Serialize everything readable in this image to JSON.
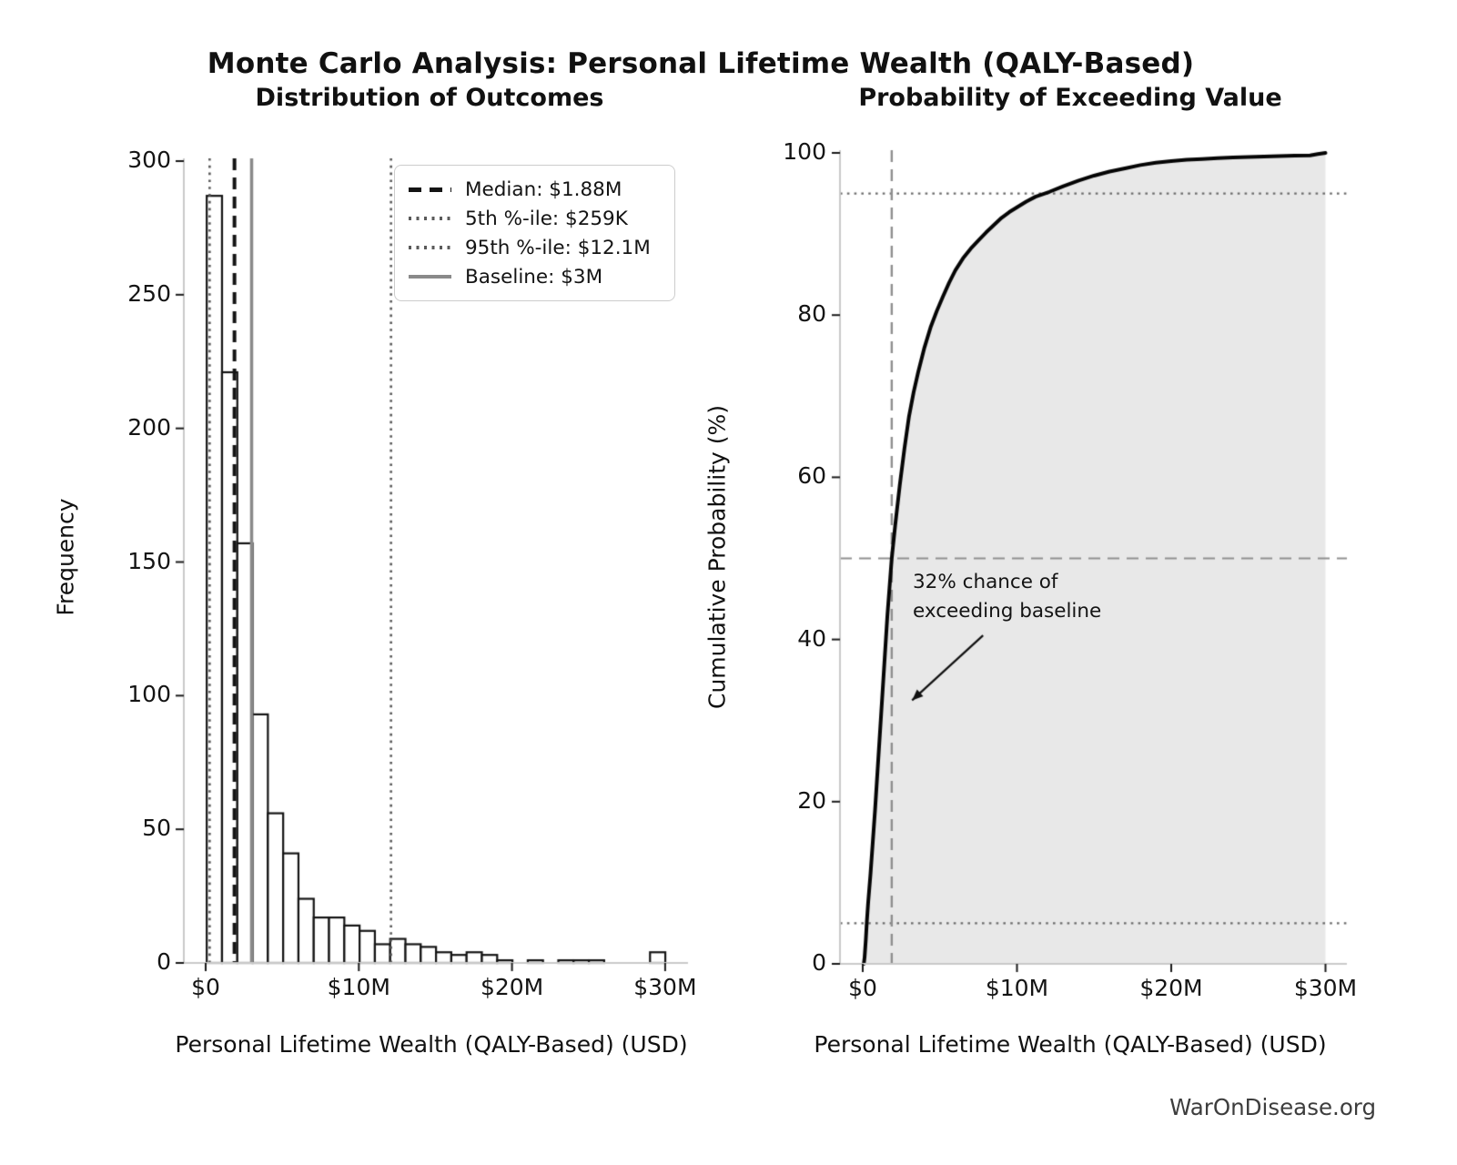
{
  "figure": {
    "title": "Monte Carlo Analysis: Personal Lifetime Wealth (QALY-Based)",
    "footer": "WarOnDisease.org",
    "background": "#ffffff",
    "text_color": "#141414",
    "spine_color": "#c9c9c9",
    "tick_color": "#1a1a1a"
  },
  "chart_data": [
    {
      "type": "bar",
      "subtype": "histogram",
      "title": "Distribution of Outcomes",
      "xlabel": "Personal Lifetime Wealth (QALY-Based) (USD)",
      "ylabel": "Frequency",
      "xlim_musd": [
        -1.5,
        31.5
      ],
      "ylim": [
        0,
        300
      ],
      "grid": false,
      "x_ticks": {
        "values_musd": [
          0,
          10,
          20,
          30
        ],
        "labels": [
          "$0",
          "$10M",
          "$20M",
          "$30M"
        ]
      },
      "y_ticks": {
        "values": [
          0,
          50,
          100,
          150,
          200,
          250,
          300
        ],
        "labels": [
          "0",
          "50",
          "100",
          "150",
          "200",
          "250",
          "300"
        ]
      },
      "bins": {
        "start_musd": 0.07,
        "width_musd": 0.998,
        "counts": [
          287,
          221,
          157,
          93,
          56,
          41,
          24,
          17,
          17,
          14,
          12,
          7,
          9,
          7,
          6,
          4,
          3,
          4,
          3,
          1,
          0,
          1,
          0,
          1,
          1,
          1,
          0,
          0,
          0,
          4
        ]
      },
      "bar_style": {
        "fill": "#ffffff",
        "edge": "#141414",
        "edge_width": 2.2
      },
      "ref_lines": [
        {
          "label": "Median: $1.88M",
          "x_musd": 1.88,
          "style": "dashed",
          "color": "#141414",
          "width": 4
        },
        {
          "label": "5th %-ile: $259K",
          "x_musd": 0.259,
          "style": "dotted",
          "color": "#5a5a5a",
          "width": 2.6
        },
        {
          "label": "95th %-ile: $12.1M",
          "x_musd": 12.1,
          "style": "dotted",
          "color": "#5a5a5a",
          "width": 2.6
        },
        {
          "label": "Baseline: $3M",
          "x_musd": 3.0,
          "style": "solid",
          "color": "#8a8a8a",
          "width": 3.5
        }
      ],
      "legend_position": "upper right"
    },
    {
      "type": "line",
      "title": "Probability of Exceeding Value",
      "xlabel": "Personal Lifetime Wealth (QALY-Based) (USD)",
      "ylabel": "Cumulative Probability (%)",
      "xlim_musd": [
        -1.5,
        31.4
      ],
      "ylim": [
        0,
        100
      ],
      "grid": false,
      "x_ticks": {
        "values_musd": [
          0,
          10,
          20,
          30
        ],
        "labels": [
          "$0",
          "$10M",
          "$20M",
          "$30M"
        ]
      },
      "y_ticks": {
        "values": [
          0,
          20,
          40,
          60,
          80,
          100
        ],
        "labels": [
          "0",
          "20",
          "40",
          "60",
          "80",
          "100"
        ]
      },
      "line_style": {
        "color": "#050505",
        "width": 4
      },
      "fill_color": "#e8e8e8",
      "curve_points_musd_pct": [
        [
          0.07,
          0
        ],
        [
          0.12,
          0.8
        ],
        [
          0.2,
          3
        ],
        [
          0.26,
          5
        ],
        [
          0.35,
          7.5
        ],
        [
          0.5,
          11
        ],
        [
          0.65,
          15
        ],
        [
          0.8,
          19
        ],
        [
          1.0,
          25
        ],
        [
          1.2,
          31
        ],
        [
          1.4,
          37
        ],
        [
          1.6,
          43
        ],
        [
          1.88,
          50
        ],
        [
          2.1,
          54
        ],
        [
          2.4,
          59
        ],
        [
          2.7,
          63.5
        ],
        [
          3.0,
          67.5
        ],
        [
          3.3,
          70.5
        ],
        [
          3.6,
          73
        ],
        [
          4.0,
          76
        ],
        [
          4.4,
          78.5
        ],
        [
          4.8,
          80.5
        ],
        [
          5.2,
          82.3
        ],
        [
          5.6,
          84
        ],
        [
          6.0,
          85.5
        ],
        [
          6.5,
          87
        ],
        [
          7.0,
          88.2
        ],
        [
          7.5,
          89.2
        ],
        [
          8.0,
          90.2
        ],
        [
          8.5,
          91.1
        ],
        [
          9.0,
          92
        ],
        [
          9.5,
          92.7
        ],
        [
          10.0,
          93.3
        ],
        [
          10.6,
          94
        ],
        [
          11.2,
          94.6
        ],
        [
          12.1,
          95.2
        ],
        [
          13.0,
          95.9
        ],
        [
          14.0,
          96.6
        ],
        [
          15.0,
          97.2
        ],
        [
          16.0,
          97.7
        ],
        [
          17.0,
          98.1
        ],
        [
          18.0,
          98.5
        ],
        [
          19.0,
          98.8
        ],
        [
          20.0,
          99.0
        ],
        [
          21.0,
          99.15
        ],
        [
          22.0,
          99.25
        ],
        [
          23.0,
          99.35
        ],
        [
          24.0,
          99.45
        ],
        [
          25.0,
          99.5
        ],
        [
          26.0,
          99.55
        ],
        [
          27.0,
          99.6
        ],
        [
          28.0,
          99.65
        ],
        [
          29.0,
          99.7
        ],
        [
          29.5,
          99.85
        ],
        [
          30.0,
          100
        ]
      ],
      "h_lines": [
        {
          "y": 95,
          "style": "dotted",
          "color": "#6b6b6b",
          "width": 2.2
        },
        {
          "y": 50,
          "style": "dashed",
          "color": "#8f8f8f",
          "width": 2.2
        },
        {
          "y": 5,
          "style": "dotted",
          "color": "#6b6b6b",
          "width": 2.2
        }
      ],
      "v_lines": [
        {
          "x_musd": 1.88,
          "style": "dashed",
          "color": "#8f8f8f",
          "width": 2.4
        }
      ],
      "annotation": {
        "lines": [
          "32% chance of",
          "exceeding baseline"
        ],
        "text_x_musd": 3.25,
        "text_y_pct": 48.5,
        "arrow_start_musd_pct": [
          7.8,
          40.5
        ],
        "arrow_end_musd_pct": [
          3.2,
          32.5
        ],
        "arrow_color": "#111111"
      }
    }
  ]
}
